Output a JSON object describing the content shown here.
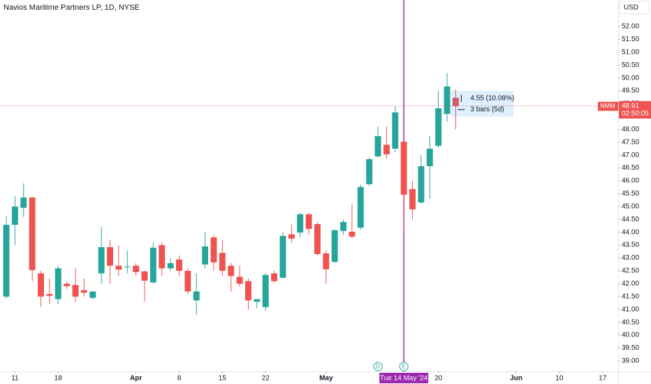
{
  "chart_data": {
    "type": "candlestick",
    "title": "Navios Maritime Partners LP, 1D, NYSE",
    "currency": "USD",
    "up_color": "#26a69a",
    "down_color": "#ef5350",
    "grid": false,
    "x": [
      0,
      1,
      2,
      3,
      4,
      5,
      6,
      7,
      8,
      9,
      10,
      11,
      12,
      13,
      14,
      15,
      16,
      17,
      18,
      19,
      20,
      21,
      22,
      23,
      24,
      25,
      26,
      27,
      28,
      29,
      30,
      31,
      32,
      33,
      34,
      35,
      36,
      37,
      38,
      39,
      40,
      41,
      42,
      43,
      44,
      45,
      46,
      47,
      48,
      49,
      50,
      51,
      52
    ],
    "open": [
      41.5,
      44.29,
      44.95,
      45.35,
      42.4,
      41.6,
      41.4,
      42.0,
      41.95,
      41.75,
      41.45,
      42.4,
      43.42,
      42.7,
      42.65,
      42.7,
      42.48,
      42.05,
      43.5,
      42.6,
      42.94,
      42.5,
      41.35,
      42.75,
      43.8,
      43.2,
      42.7,
      42.27,
      42.1,
      41.3,
      41.09,
      42.4,
      42.23,
      43.92,
      43.99,
      44.7,
      44.32,
      43.18,
      42.85,
      44.05,
      44.02,
      44.18,
      45.87,
      46.95,
      47.4,
      47.25,
      47.52,
      45.68,
      45.16,
      46.57,
      47.36,
      48.6,
      49.23
    ],
    "high": [
      44.62,
      45.4,
      45.9,
      45.4,
      42.5,
      42.2,
      42.7,
      42.1,
      42.6,
      42.2,
      41.7,
      44.2,
      43.7,
      43.5,
      43.3,
      42.8,
      42.5,
      43.6,
      43.6,
      43.0,
      43.1,
      42.6,
      42.4,
      44.0,
      43.9,
      43.7,
      42.8,
      42.7,
      42.2,
      41.4,
      42.4,
      42.5,
      44.0,
      44.3,
      44.75,
      44.75,
      44.4,
      43.3,
      44.1,
      44.5,
      45.1,
      45.85,
      46.9,
      48.1,
      48.1,
      48.9,
      47.52,
      46.0,
      47.0,
      47.75,
      49.5,
      50.2,
      49.55
    ],
    "low": [
      41.42,
      43.5,
      44.6,
      42.1,
      41.1,
      41.2,
      41.2,
      41.8,
      41.3,
      41.5,
      41.4,
      42.0,
      42.0,
      42.3,
      42.4,
      42.3,
      41.3,
      42.0,
      42.3,
      42.5,
      42.3,
      41.6,
      40.8,
      42.6,
      42.5,
      42.3,
      41.7,
      41.9,
      41.0,
      41.05,
      40.95,
      42.05,
      42.2,
      43.6,
      43.8,
      43.9,
      43.1,
      42.0,
      42.8,
      43.9,
      43.75,
      44.1,
      45.8,
      46.9,
      46.85,
      47.1,
      44.0,
      44.5,
      45.1,
      45.3,
      47.3,
      48.3,
      48.0
    ],
    "close": [
      44.29,
      45.0,
      45.35,
      42.53,
      41.5,
      41.53,
      42.6,
      41.9,
      41.5,
      41.65,
      41.7,
      43.42,
      42.7,
      42.55,
      42.67,
      42.45,
      42.12,
      43.4,
      42.6,
      42.8,
      42.5,
      41.7,
      41.7,
      43.45,
      42.83,
      42.5,
      42.3,
      42.0,
      41.35,
      41.4,
      42.34,
      42.1,
      43.86,
      43.75,
      44.7,
      44.13,
      43.15,
      42.56,
      44.08,
      44.4,
      43.83,
      45.76,
      46.84,
      47.74,
      47.03,
      48.66,
      45.46,
      44.89,
      46.57,
      47.25,
      48.82,
      49.67,
      48.91
    ],
    "xlim": [
      -0.73,
      70.8
    ],
    "xticks": [
      {
        "value": 1,
        "label": "11"
      },
      {
        "value": 6,
        "label": "18"
      },
      {
        "value": 15,
        "label": "Apr"
      },
      {
        "value": 20,
        "label": "8"
      },
      {
        "value": 25,
        "label": "15"
      },
      {
        "value": 30,
        "label": "22"
      },
      {
        "value": 37,
        "label": "May"
      },
      {
        "value": 50,
        "label": "20"
      },
      {
        "value": 59,
        "label": "Jun"
      },
      {
        "value": 64,
        "label": "10"
      },
      {
        "value": 69,
        "label": "17"
      }
    ],
    "ylim": [
      38.59,
      53.03
    ],
    "yticks": [
      {
        "value": 39,
        "label": "39.00"
      },
      {
        "value": 39.5,
        "label": "39.50"
      },
      {
        "value": 40,
        "label": "40.00"
      },
      {
        "value": 40.5,
        "label": "40.50"
      },
      {
        "value": 41,
        "label": "41.00"
      },
      {
        "value": 41.5,
        "label": "41.50"
      },
      {
        "value": 42,
        "label": "42.00"
      },
      {
        "value": 42.5,
        "label": "42.50"
      },
      {
        "value": 43,
        "label": "43.00"
      },
      {
        "value": 43.5,
        "label": "43.50"
      },
      {
        "value": 44,
        "label": "44.00"
      },
      {
        "value": 44.5,
        "label": "44.50"
      },
      {
        "value": 45,
        "label": "45.00"
      },
      {
        "value": 45.5,
        "label": "45.50"
      },
      {
        "value": 46,
        "label": "46.00"
      },
      {
        "value": 46.5,
        "label": "46.50"
      },
      {
        "value": 47,
        "label": "47.00"
      },
      {
        "value": 47.5,
        "label": "47.50"
      },
      {
        "value": 48,
        "label": "48.00"
      },
      {
        "value": 48.5,
        "label": "48.50"
      },
      {
        "value": 49,
        "label": "49.00"
      },
      {
        "value": 49.5,
        "label": "49.50"
      },
      {
        "value": 50,
        "label": "50.00"
      },
      {
        "value": 50.5,
        "label": "50.50"
      },
      {
        "value": 51,
        "label": "51.00"
      },
      {
        "value": 51.5,
        "label": "51.50"
      },
      {
        "value": 52,
        "label": "52.00"
      }
    ],
    "price_label": {
      "symbol": "NMM",
      "price": 48.91,
      "countdown": "02:50:05"
    },
    "crosshair": {
      "x": 46,
      "label": "Tue 14 May '24"
    },
    "events": [
      {
        "x": 43,
        "label": "D"
      },
      {
        "x": 46,
        "label": "E"
      }
    ],
    "measure": {
      "change": "4.55 (10.08%)",
      "bars": "3 bars (5d)"
    }
  }
}
